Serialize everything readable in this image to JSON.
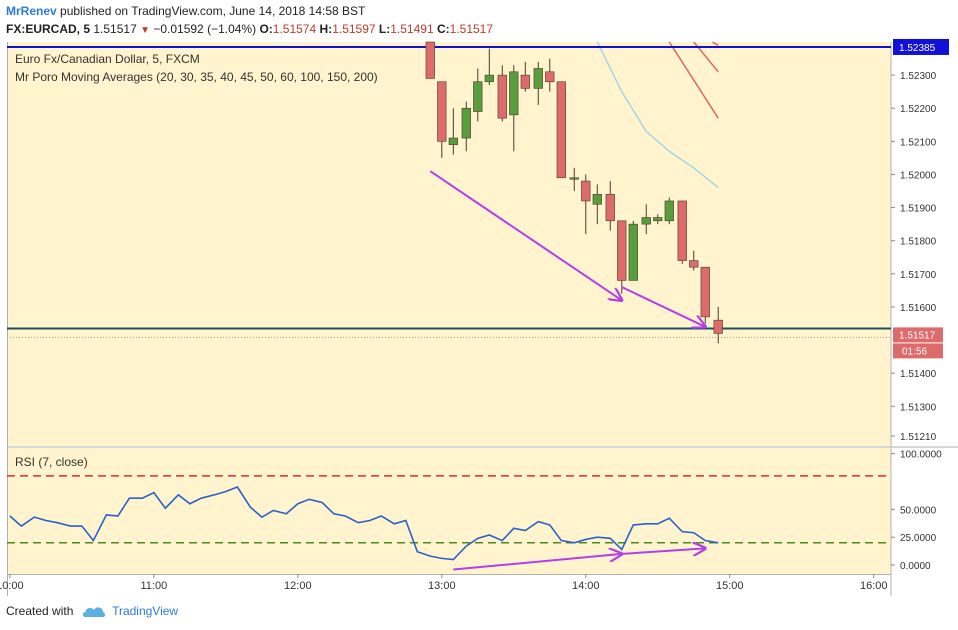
{
  "header": {
    "user": "MrRenev",
    "published": "published on TradingView.com, June 14, 2018 14:58 BST",
    "symbol": "FX:EURCAD, 5",
    "last": "1.51517",
    "change": "−0.01592 (−1.04%)",
    "open_label": "O:",
    "open": "1.51574",
    "high_label": "H:",
    "high": "1.51597",
    "low_label": "L:",
    "low": "1.51491",
    "close_label": "C:",
    "close": "1.51517"
  },
  "legend": {
    "instrument": "Euro Fx/Canadian Dollar, 5, FXCM",
    "ma": "Mr Poro Moving Averages (20, 30, 35, 40, 45, 50, 60, 100, 150, 200)",
    "rsi": "RSI (7, close)"
  },
  "footer": {
    "created_with": "Created with",
    "brand": "TradingView"
  },
  "colors": {
    "panel_bg": "#fff4cd",
    "up": "#5a9d3f",
    "down": "#dd6b6b",
    "blue_line": "#1010d8",
    "price_line": "#1f4e5e",
    "arrow": "#b43ee8",
    "rsi_line": "#2a62c9",
    "rsi_red": "#d62f2f",
    "rsi_green": "#4a8a1e",
    "ma_light": "#a8d4e6",
    "ma_red": "#e0665e"
  },
  "chart_data": [
    {
      "type": "candlestick",
      "title": "Euro Fx/Canadian Dollar, 5, FXCM",
      "ylim": [
        1.5118,
        1.524
      ],
      "y_ticks": [
        1.523,
        1.522,
        1.521,
        1.52,
        1.519,
        1.518,
        1.517,
        1.516,
        1.514,
        1.513,
        1.5121
      ],
      "y_tick_labels": [
        "1.52300",
        "1.52200",
        "1.52100",
        "1.52000",
        "1.51900",
        "1.51800",
        "1.51700",
        "1.51600",
        "1.51400",
        "1.51300",
        "1.51210"
      ],
      "x_ticks": [
        "10:00",
        "11:00",
        "12:00",
        "13:00",
        "14:00",
        "15:00",
        "16:00"
      ],
      "x_tick_hours": [
        10,
        11,
        12,
        13,
        14,
        15,
        16
      ],
      "x_range_hours": [
        9.98,
        16.12
      ],
      "candles": [
        {
          "t": 12.92,
          "o": 1.524,
          "h": 1.524,
          "l": 1.5229,
          "c": 1.5229
        },
        {
          "t": 13.0,
          "o": 1.5228,
          "h": 1.5228,
          "l": 1.5205,
          "c": 1.521
        },
        {
          "t": 13.08,
          "o": 1.5209,
          "h": 1.522,
          "l": 1.5206,
          "c": 1.5211
        },
        {
          "t": 13.17,
          "o": 1.5211,
          "h": 1.5222,
          "l": 1.5207,
          "c": 1.522
        },
        {
          "t": 13.25,
          "o": 1.5219,
          "h": 1.5232,
          "l": 1.5216,
          "c": 1.5228
        },
        {
          "t": 13.33,
          "o": 1.5228,
          "h": 1.5238,
          "l": 1.5227,
          "c": 1.523
        },
        {
          "t": 13.42,
          "o": 1.523,
          "h": 1.5233,
          "l": 1.5216,
          "c": 1.5217
        },
        {
          "t": 13.5,
          "o": 1.5218,
          "h": 1.5233,
          "l": 1.5207,
          "c": 1.5231
        },
        {
          "t": 13.58,
          "o": 1.523,
          "h": 1.5234,
          "l": 1.5225,
          "c": 1.5226
        },
        {
          "t": 13.67,
          "o": 1.5226,
          "h": 1.5234,
          "l": 1.5221,
          "c": 1.5232
        },
        {
          "t": 13.75,
          "o": 1.5231,
          "h": 1.5235,
          "l": 1.5225,
          "c": 1.5228
        },
        {
          "t": 13.83,
          "o": 1.5228,
          "h": 1.5228,
          "l": 1.5199,
          "c": 1.5199
        },
        {
          "t": 13.92,
          "o": 1.5199,
          "h": 1.5202,
          "l": 1.5195,
          "c": 1.5199
        },
        {
          "t": 14.0,
          "o": 1.5198,
          "h": 1.52,
          "l": 1.5182,
          "c": 1.5192
        },
        {
          "t": 14.08,
          "o": 1.5191,
          "h": 1.5197,
          "l": 1.5185,
          "c": 1.5194
        },
        {
          "t": 14.17,
          "o": 1.5194,
          "h": 1.5198,
          "l": 1.5183,
          "c": 1.5186
        },
        {
          "t": 14.25,
          "o": 1.5186,
          "h": 1.5186,
          "l": 1.5164,
          "c": 1.5168
        },
        {
          "t": 14.33,
          "o": 1.5168,
          "h": 1.5186,
          "l": 1.5168,
          "c": 1.5185
        },
        {
          "t": 14.42,
          "o": 1.5185,
          "h": 1.5191,
          "l": 1.5182,
          "c": 1.5187
        },
        {
          "t": 14.5,
          "o": 1.5186,
          "h": 1.5188,
          "l": 1.5185,
          "c": 1.5187
        },
        {
          "t": 14.58,
          "o": 1.5186,
          "h": 1.5193,
          "l": 1.5185,
          "c": 1.5192
        },
        {
          "t": 14.67,
          "o": 1.5192,
          "h": 1.5192,
          "l": 1.5173,
          "c": 1.5174
        },
        {
          "t": 14.75,
          "o": 1.5174,
          "h": 1.5177,
          "l": 1.5171,
          "c": 1.5172
        },
        {
          "t": 14.83,
          "o": 1.5172,
          "h": 1.5172,
          "l": 1.5155,
          "c": 1.5157
        },
        {
          "t": 14.92,
          "o": 1.5156,
          "h": 1.516,
          "l": 1.5149,
          "c": 1.5152
        }
      ],
      "horizontal_lines": [
        {
          "value": 1.52385,
          "label": "1.52385",
          "color": "#1010d8"
        },
        {
          "value": 1.51535,
          "color": "#1f4e5e"
        }
      ],
      "last_price": {
        "value": 1.51517,
        "label": "1.51517",
        "countdown": "01:56"
      },
      "moving_averages": [
        {
          "color": "#a8d4e6",
          "points": [
            [
              14.08,
              1.524
            ],
            [
              14.25,
              1.5225
            ],
            [
              14.42,
              1.5213
            ],
            [
              14.58,
              1.5207
            ],
            [
              14.75,
              1.5202
            ],
            [
              14.92,
              1.5196
            ]
          ]
        },
        {
          "color": "#e0665e",
          "points": [
            [
              14.58,
              1.524
            ],
            [
              14.92,
              1.5217
            ]
          ]
        },
        {
          "color": "#e0665e",
          "points": [
            [
              14.75,
              1.524
            ],
            [
              14.92,
              1.5231
            ]
          ]
        },
        {
          "color": "#e0665e",
          "points": [
            [
              14.88,
              1.524
            ],
            [
              14.92,
              1.5239
            ]
          ]
        }
      ],
      "arrows": [
        {
          "from": [
            12.92,
            1.5201
          ],
          "to": [
            14.25,
            1.5162
          ]
        },
        {
          "from": [
            14.25,
            1.5166
          ],
          "to": [
            14.83,
            1.5154
          ]
        }
      ]
    },
    {
      "type": "line",
      "title": "RSI (7, close)",
      "ylim": [
        -8,
        105
      ],
      "y_ticks": [
        100,
        50,
        25,
        0
      ],
      "y_tick_labels": [
        "100.0000",
        "50.0000",
        "25.0000",
        "0.0000"
      ],
      "levels": [
        {
          "value": 80,
          "color": "#d62f2f"
        },
        {
          "value": 20,
          "color": "#4a8a1e"
        }
      ],
      "series": [
        {
          "color": "#2a62c9",
          "points": [
            [
              10.0,
              44
            ],
            [
              10.08,
              35
            ],
            [
              10.17,
              43
            ],
            [
              10.25,
              40
            ],
            [
              10.33,
              38
            ],
            [
              10.42,
              35
            ],
            [
              10.5,
              35
            ],
            [
              10.58,
              22
            ],
            [
              10.67,
              45
            ],
            [
              10.75,
              44
            ],
            [
              10.83,
              60
            ],
            [
              10.92,
              60
            ],
            [
              11.0,
              65
            ],
            [
              11.08,
              51
            ],
            [
              11.17,
              63
            ],
            [
              11.25,
              55
            ],
            [
              11.33,
              60
            ],
            [
              11.42,
              63
            ],
            [
              11.5,
              66
            ],
            [
              11.58,
              70
            ],
            [
              11.67,
              52
            ],
            [
              11.75,
              43
            ],
            [
              11.83,
              49
            ],
            [
              11.92,
              46
            ],
            [
              12.0,
              55
            ],
            [
              12.08,
              59
            ],
            [
              12.17,
              56
            ],
            [
              12.25,
              46
            ],
            [
              12.33,
              44
            ],
            [
              12.42,
              38
            ],
            [
              12.5,
              40
            ],
            [
              12.58,
              44
            ],
            [
              12.67,
              37
            ],
            [
              12.75,
              40
            ],
            [
              12.83,
              12
            ],
            [
              12.92,
              8
            ],
            [
              13.0,
              6
            ],
            [
              13.08,
              5
            ],
            [
              13.17,
              17
            ],
            [
              13.25,
              24
            ],
            [
              13.33,
              27
            ],
            [
              13.42,
              22
            ],
            [
              13.5,
              33
            ],
            [
              13.58,
              31
            ],
            [
              13.67,
              39
            ],
            [
              13.75,
              36
            ],
            [
              13.83,
              22
            ],
            [
              13.92,
              20
            ],
            [
              14.0,
              23
            ],
            [
              14.08,
              25
            ],
            [
              14.17,
              24
            ],
            [
              14.25,
              14
            ],
            [
              14.33,
              36
            ],
            [
              14.42,
              37
            ],
            [
              14.5,
              37
            ],
            [
              14.58,
              42
            ],
            [
              14.67,
              30
            ],
            [
              14.75,
              29
            ],
            [
              14.83,
              22
            ],
            [
              14.92,
              20
            ]
          ]
        }
      ],
      "arrows": [
        {
          "from": [
            13.08,
            -4
          ],
          "to": [
            14.25,
            10
          ]
        },
        {
          "from": [
            14.25,
            10
          ],
          "to": [
            14.83,
            15
          ]
        }
      ]
    }
  ]
}
